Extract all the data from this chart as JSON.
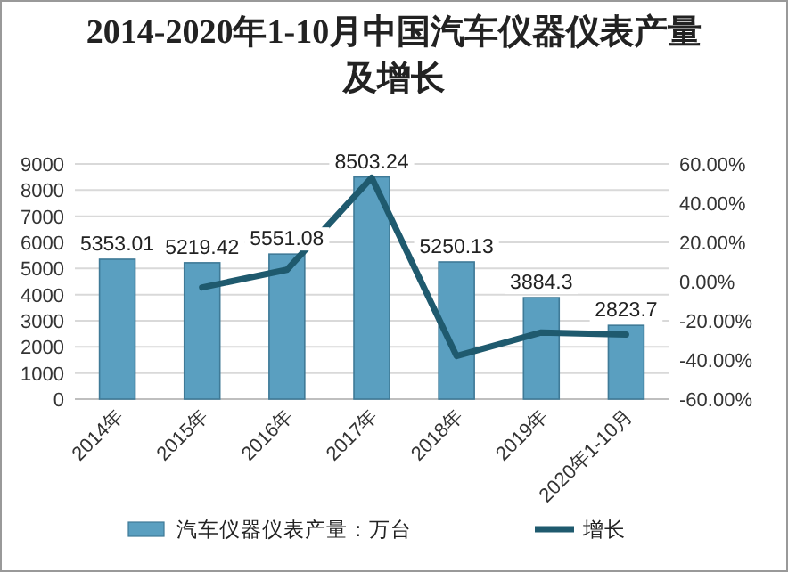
{
  "chart_data": {
    "type": "bar",
    "title": "2014-2020年1-10月中国汽车仪器仪表产量及增长",
    "categories": [
      "2014年",
      "2015年",
      "2016年",
      "2017年",
      "2018年",
      "2019年",
      "2020年1-10月"
    ],
    "series": [
      {
        "name": "汽车仪器仪表产量：万台",
        "color": "#5a9fc0",
        "values": [
          5353.01,
          5219.42,
          5551.08,
          8503.24,
          5250.13,
          3884.3,
          2823.7
        ],
        "value_labels": [
          "5353.01",
          "5219.42",
          "5551.08",
          "8503.24",
          "5250.13",
          "3884.3",
          "2823.7"
        ]
      },
      {
        "name": "增长",
        "type": "line",
        "axis": "y2",
        "color": "#1f5a6e",
        "values": [
          null,
          -3,
          6,
          53,
          -38,
          -26,
          -27
        ]
      }
    ],
    "ylim": [
      0,
      9000
    ],
    "yticks": [
      0,
      1000,
      2000,
      3000,
      4000,
      5000,
      6000,
      7000,
      8000,
      9000
    ],
    "y2lim": [
      -60,
      60
    ],
    "y2ticks": [
      {
        "value": -60,
        "label": "-60.00%"
      },
      {
        "value": -40,
        "label": "-40.00%"
      },
      {
        "value": -20,
        "label": "-20.00%"
      },
      {
        "value": 0,
        "label": "0.00%"
      },
      {
        "value": 20,
        "label": "20.00%"
      },
      {
        "value": 40,
        "label": "40.00%"
      },
      {
        "value": 60,
        "label": "60.00%"
      }
    ],
    "grid": "y",
    "legend": "bottom"
  }
}
